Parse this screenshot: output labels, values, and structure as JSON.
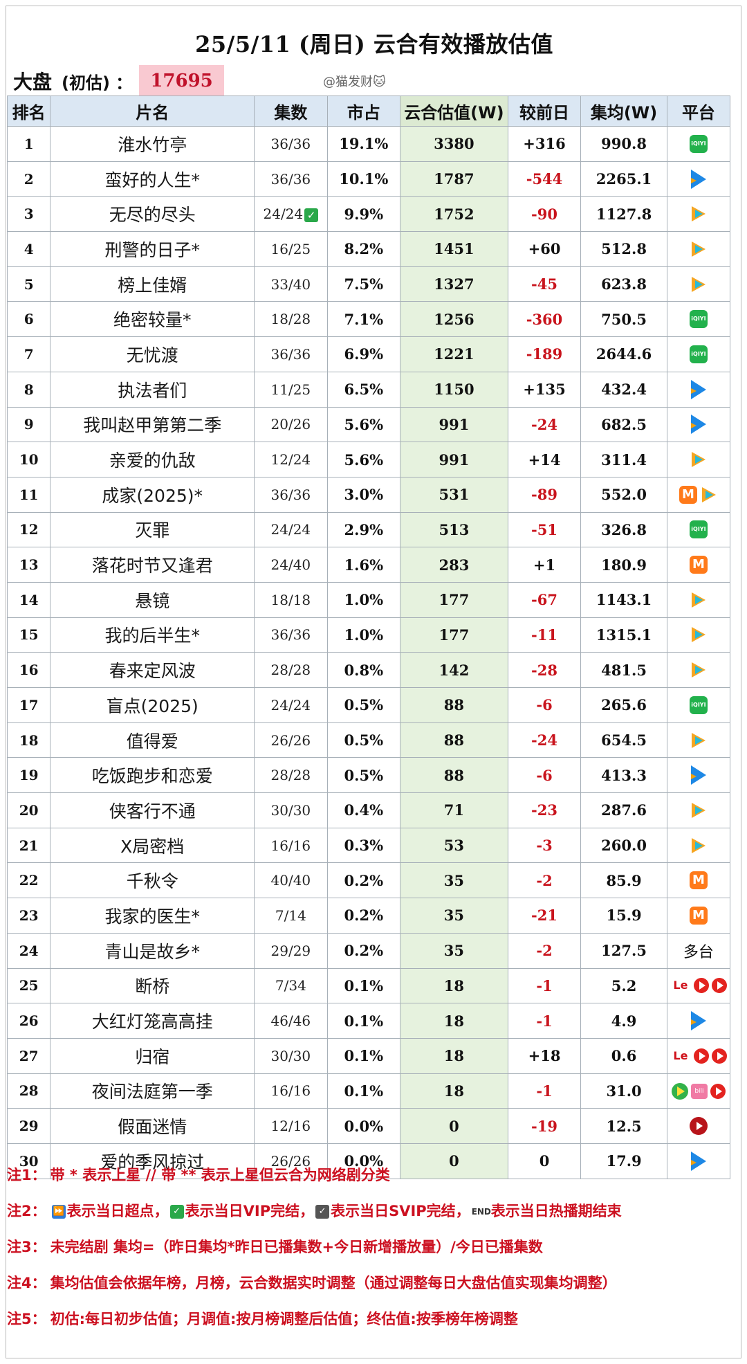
{
  "title": "25/5/11 (周日) 云合有效播放估值",
  "market": {
    "label": "大盘",
    "sub": "(初估) ：",
    "value": "17695"
  },
  "watermark": "@猫发财🐱",
  "headers": [
    "排名",
    "片名",
    "集数",
    "市占",
    "云合估值(W)",
    "较前日",
    "集均(W)",
    "平台"
  ],
  "rows": [
    {
      "rank": "1",
      "name": "淮水竹亭",
      "eps": "36/36",
      "share": "19.1%",
      "est": "3380",
      "chg": "+316",
      "avg": "990.8",
      "platforms": [
        "iqiyi"
      ]
    },
    {
      "rank": "2",
      "name": "蛮好的人生*",
      "eps": "36/36",
      "share": "10.1%",
      "est": "1787",
      "chg": "-544",
      "avg": "2265.1",
      "platforms": [
        "youku"
      ]
    },
    {
      "rank": "3",
      "name": "无尽的尽头",
      "eps": "24/24",
      "eps_mark": "✓",
      "share": "9.9%",
      "est": "1752",
      "chg": "-90",
      "avg": "1127.8",
      "platforms": [
        "tencent"
      ]
    },
    {
      "rank": "4",
      "name": "刑警的日子*",
      "eps": "16/25",
      "share": "8.2%",
      "est": "1451",
      "chg": "+60",
      "avg": "512.8",
      "platforms": [
        "tencent"
      ]
    },
    {
      "rank": "5",
      "name": "榜上佳婿",
      "eps": "33/40",
      "share": "7.5%",
      "est": "1327",
      "chg": "-45",
      "avg": "623.8",
      "platforms": [
        "tencent"
      ]
    },
    {
      "rank": "6",
      "name": "绝密较量*",
      "eps": "18/28",
      "share": "7.1%",
      "est": "1256",
      "chg": "-360",
      "avg": "750.5",
      "platforms": [
        "iqiyi"
      ]
    },
    {
      "rank": "7",
      "name": "无忧渡",
      "eps": "36/36",
      "share": "6.9%",
      "est": "1221",
      "chg": "-189",
      "avg": "2644.6",
      "platforms": [
        "iqiyi"
      ]
    },
    {
      "rank": "8",
      "name": "执法者们",
      "eps": "11/25",
      "share": "6.5%",
      "est": "1150",
      "chg": "+135",
      "avg": "432.4",
      "platforms": [
        "youku"
      ]
    },
    {
      "rank": "9",
      "name": "我叫赵甲第第二季",
      "eps": "20/26",
      "share": "5.6%",
      "est": "991",
      "chg": "-24",
      "avg": "682.5",
      "platforms": [
        "youku"
      ]
    },
    {
      "rank": "10",
      "name": "亲爱的仇敌",
      "eps": "12/24",
      "share": "5.6%",
      "est": "991",
      "chg": "+14",
      "avg": "311.4",
      "platforms": [
        "tencent"
      ]
    },
    {
      "rank": "11",
      "name": "成家(2025)*",
      "eps": "36/36",
      "share": "3.0%",
      "est": "531",
      "chg": "-89",
      "avg": "552.0",
      "platforms": [
        "mango",
        "tencent"
      ]
    },
    {
      "rank": "12",
      "name": "灭罪",
      "eps": "24/24",
      "share": "2.9%",
      "est": "513",
      "chg": "-51",
      "avg": "326.8",
      "platforms": [
        "iqiyi"
      ]
    },
    {
      "rank": "13",
      "name": "落花时节又逢君",
      "eps": "24/40",
      "share": "1.6%",
      "est": "283",
      "chg": "+1",
      "avg": "180.9",
      "platforms": [
        "mango"
      ]
    },
    {
      "rank": "14",
      "name": "悬镜",
      "eps": "18/18",
      "share": "1.0%",
      "est": "177",
      "chg": "-67",
      "avg": "1143.1",
      "platforms": [
        "tencent"
      ]
    },
    {
      "rank": "15",
      "name": "我的后半生*",
      "eps": "36/36",
      "share": "1.0%",
      "est": "177",
      "chg": "-11",
      "avg": "1315.1",
      "platforms": [
        "tencent"
      ]
    },
    {
      "rank": "16",
      "name": "春来定风波",
      "eps": "28/28",
      "share": "0.8%",
      "est": "142",
      "chg": "-28",
      "avg": "481.5",
      "platforms": [
        "tencent"
      ]
    },
    {
      "rank": "17",
      "name": "盲点(2025)",
      "eps": "24/24",
      "share": "0.5%",
      "est": "88",
      "chg": "-6",
      "avg": "265.6",
      "platforms": [
        "iqiyi"
      ]
    },
    {
      "rank": "18",
      "name": "值得爱",
      "eps": "26/26",
      "share": "0.5%",
      "est": "88",
      "chg": "-24",
      "avg": "654.5",
      "platforms": [
        "tencent"
      ]
    },
    {
      "rank": "19",
      "name": "吃饭跑步和恋爱",
      "eps": "28/28",
      "share": "0.5%",
      "est": "88",
      "chg": "-6",
      "avg": "413.3",
      "platforms": [
        "youku"
      ]
    },
    {
      "rank": "20",
      "name": "侠客行不通",
      "eps": "30/30",
      "share": "0.4%",
      "est": "71",
      "chg": "-23",
      "avg": "287.6",
      "platforms": [
        "tencent"
      ]
    },
    {
      "rank": "21",
      "name": "X局密档",
      "eps": "16/16",
      "share": "0.3%",
      "est": "53",
      "chg": "-3",
      "avg": "260.0",
      "platforms": [
        "tencent"
      ]
    },
    {
      "rank": "22",
      "name": "千秋令",
      "eps": "40/40",
      "share": "0.2%",
      "est": "35",
      "chg": "-2",
      "avg": "85.9",
      "platforms": [
        "mango"
      ]
    },
    {
      "rank": "23",
      "name": "我家的医生*",
      "eps": "7/14",
      "share": "0.2%",
      "est": "35",
      "chg": "-21",
      "avg": "15.9",
      "platforms": [
        "mango"
      ]
    },
    {
      "rank": "24",
      "name": "青山是故乡*",
      "eps": "29/29",
      "share": "0.2%",
      "est": "35",
      "chg": "-2",
      "avg": "127.5",
      "platform_text": "多台"
    },
    {
      "rank": "25",
      "name": "断桥",
      "eps": "7/34",
      "share": "0.1%",
      "est": "18",
      "chg": "-1",
      "avg": "5.2",
      "platforms": [
        "le",
        "circle",
        "circle"
      ]
    },
    {
      "rank": "26",
      "name": "大红灯笼高高挂",
      "eps": "46/46",
      "share": "0.1%",
      "est": "18",
      "chg": "-1",
      "avg": "4.9",
      "platforms": [
        "youku"
      ]
    },
    {
      "rank": "27",
      "name": "归宿",
      "eps": "30/30",
      "share": "0.1%",
      "est": "18",
      "chg": "+18",
      "avg": "0.6",
      "platforms": [
        "le",
        "circle",
        "circle"
      ]
    },
    {
      "rank": "28",
      "name": "夜间法庭第一季",
      "eps": "16/16",
      "share": "0.1%",
      "est": "18",
      "chg": "-1",
      "avg": "31.0",
      "platforms": [
        "green",
        "bili",
        "circle"
      ]
    },
    {
      "rank": "29",
      "name": "假面迷情",
      "eps": "12/16",
      "share": "0.0%",
      "est": "0",
      "chg": "-19",
      "avg": "12.5",
      "platforms": [
        "circle-dark"
      ]
    },
    {
      "rank": "30",
      "name": "爱的季风掠过",
      "eps": "26/26",
      "share": "0.0%",
      "est": "0",
      "chg": "0",
      "avg": "17.9",
      "platforms": [
        "youku"
      ]
    }
  ],
  "notes": {
    "n1": {
      "key": "注1：",
      "text": "带 * 表示上星 // 带 ** 表示上星但云合为网络剧分类"
    },
    "n2": {
      "key": "注2：",
      "parts": [
        "表示当日超点，",
        "表示当日VIP完结，",
        "表示当日SVIP完结，",
        "表示当日热播期结束"
      ]
    },
    "n3": {
      "key": "注3：",
      "text": "未完结剧 集均=（昨日集均*昨日已播集数+今日新增播放量）/今日已播集数"
    },
    "n4": {
      "key": "注4：",
      "text": "集均估值会依据年榜，月榜，云合数据实时调整（通过调整每日大盘估值实现集均调整）"
    },
    "n5": {
      "key": "注5：",
      "text": "初估:每日初步估值；月调值:按月榜调整后估值；终估值:按季榜年榜调整"
    }
  },
  "icons": {
    "iqiyi": "iQIYI",
    "mango": "M",
    "le": "Le",
    "bili": "bili",
    "check": "✓",
    "note_ff": "⏩",
    "note_svip": "✓",
    "note_end": "END"
  },
  "colors": {
    "accent_red": "#cc1020",
    "estimate_bg": "#e6f2de",
    "header_bg": "#dbe7f3",
    "market_bg": "#f9c9d1"
  }
}
